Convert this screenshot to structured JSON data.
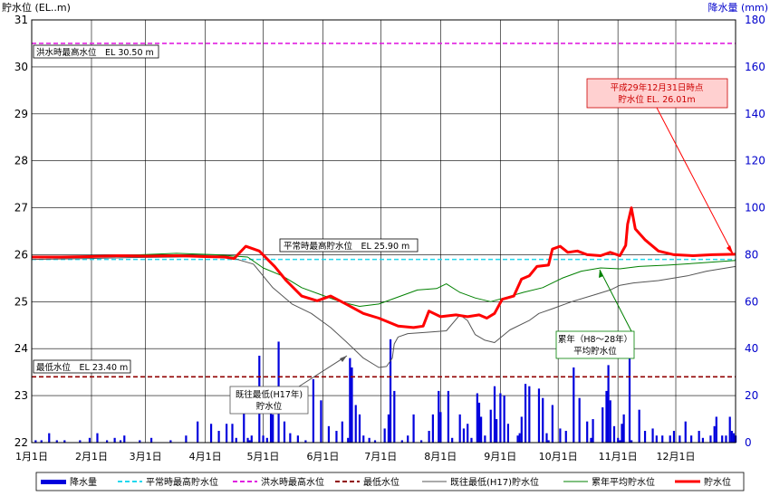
{
  "chart_data": {
    "type": "line",
    "left_axis": {
      "label": "貯水位 (EL..m)",
      "ylim": [
        22,
        31
      ],
      "ticks": [
        "22",
        "23",
        "24",
        "25",
        "26",
        "27",
        "28",
        "29",
        "30",
        "31"
      ]
    },
    "right_axis": {
      "label": "降水量 (mm)",
      "ylim": [
        0,
        180
      ],
      "ticks": [
        "0",
        "20",
        "40",
        "60",
        "80",
        "100",
        "120",
        "140",
        "160",
        "180"
      ]
    },
    "x_ticks": [
      "1月1日",
      "2月1日",
      "3月1日",
      "4月1日",
      "5月1日",
      "6月1日",
      "7月1日",
      "8月1日",
      "9月1日",
      "10月1日",
      "11月1日",
      "12月1日"
    ],
    "x_domain_days": 365,
    "reference_lines": [
      {
        "key": "flood",
        "label": "洪水時最高水位　EL 30.50 m",
        "value": 30.5,
        "color": "#e020e0"
      },
      {
        "key": "normal",
        "label": "平常時最高貯水位　EL 25.90 m",
        "value": 25.9,
        "color": "#20d8ee"
      },
      {
        "key": "min",
        "label": "最低水位　EL 23.40 m",
        "value": 23.4,
        "color": "#900000"
      }
    ],
    "annotations": {
      "current": {
        "line1": "平成29年12月31日時点",
        "line2": "貯水位 EL. 26.01m"
      },
      "historic": {
        "line1": "既往最低(H17年)",
        "line2": "貯水位"
      },
      "average": {
        "line1": "累年（H8～28年）",
        "line2": "平均貯水位"
      }
    },
    "series": [
      {
        "name": "貯水位",
        "color": "#ff0000",
        "axis": "left",
        "points": [
          [
            0,
            25.95
          ],
          [
            15,
            25.95
          ],
          [
            30,
            25.96
          ],
          [
            45,
            25.98
          ],
          [
            60,
            25.97
          ],
          [
            75,
            25.98
          ],
          [
            90,
            25.96
          ],
          [
            100,
            25.95
          ],
          [
            105,
            25.92
          ],
          [
            111,
            26.18
          ],
          [
            118,
            26.08
          ],
          [
            126,
            25.75
          ],
          [
            132,
            25.45
          ],
          [
            140,
            25.12
          ],
          [
            148,
            25.02
          ],
          [
            155,
            25.12
          ],
          [
            163,
            24.95
          ],
          [
            172,
            24.75
          ],
          [
            180,
            24.65
          ],
          [
            190,
            24.48
          ],
          [
            198,
            24.45
          ],
          [
            203,
            24.48
          ],
          [
            206,
            24.8
          ],
          [
            212,
            24.68
          ],
          [
            220,
            24.72
          ],
          [
            226,
            24.68
          ],
          [
            232,
            24.72
          ],
          [
            236,
            24.65
          ],
          [
            240,
            24.75
          ],
          [
            244,
            25.05
          ],
          [
            250,
            25.12
          ],
          [
            254,
            25.48
          ],
          [
            258,
            25.55
          ],
          [
            262,
            25.75
          ],
          [
            268,
            25.78
          ],
          [
            270,
            26.12
          ],
          [
            274,
            26.18
          ],
          [
            278,
            26.05
          ],
          [
            283,
            26.08
          ],
          [
            288,
            26.0
          ],
          [
            295,
            25.98
          ],
          [
            300,
            26.05
          ],
          [
            305,
            25.98
          ],
          [
            308,
            26.2
          ],
          [
            309,
            26.65
          ],
          [
            311,
            27.0
          ],
          [
            313,
            26.55
          ],
          [
            318,
            26.32
          ],
          [
            325,
            26.08
          ],
          [
            333,
            26.0
          ],
          [
            343,
            25.98
          ],
          [
            353,
            26.0
          ],
          [
            365,
            26.01
          ]
        ]
      },
      {
        "name": "既往最低(H17)貯水位",
        "color": "#555555",
        "axis": "left",
        "points": [
          [
            0,
            25.9
          ],
          [
            30,
            25.92
          ],
          [
            50,
            25.94
          ],
          [
            75,
            25.95
          ],
          [
            100,
            25.98
          ],
          [
            115,
            25.8
          ],
          [
            125,
            25.3
          ],
          [
            135,
            24.95
          ],
          [
            145,
            24.75
          ],
          [
            155,
            24.45
          ],
          [
            163,
            24.15
          ],
          [
            172,
            23.8
          ],
          [
            180,
            23.6
          ],
          [
            184,
            23.62
          ],
          [
            187,
            23.8
          ],
          [
            188,
            24.1
          ],
          [
            190,
            24.25
          ],
          [
            195,
            24.32
          ],
          [
            205,
            24.35
          ],
          [
            215,
            24.38
          ],
          [
            222,
            24.72
          ],
          [
            226,
            24.6
          ],
          [
            230,
            24.3
          ],
          [
            235,
            24.18
          ],
          [
            240,
            24.13
          ],
          [
            248,
            24.4
          ],
          [
            258,
            24.6
          ],
          [
            263,
            24.75
          ],
          [
            270,
            24.85
          ],
          [
            280,
            25.0
          ],
          [
            292,
            25.15
          ],
          [
            300,
            25.25
          ],
          [
            305,
            25.35
          ],
          [
            312,
            25.4
          ],
          [
            325,
            25.45
          ],
          [
            340,
            25.55
          ],
          [
            350,
            25.65
          ],
          [
            365,
            25.75
          ]
        ]
      },
      {
        "name": "累年平均貯水位",
        "color": "#008000",
        "axis": "left",
        "points": [
          [
            0,
            25.95
          ],
          [
            25,
            25.97
          ],
          [
            50,
            25.99
          ],
          [
            75,
            26.03
          ],
          [
            95,
            26.0
          ],
          [
            112,
            25.95
          ],
          [
            120,
            25.72
          ],
          [
            130,
            25.55
          ],
          [
            140,
            25.3
          ],
          [
            150,
            25.15
          ],
          [
            160,
            25.0
          ],
          [
            170,
            24.9
          ],
          [
            180,
            24.95
          ],
          [
            190,
            25.1
          ],
          [
            200,
            25.25
          ],
          [
            210,
            25.28
          ],
          [
            215,
            25.38
          ],
          [
            222,
            25.2
          ],
          [
            230,
            25.08
          ],
          [
            238,
            25.0
          ],
          [
            245,
            25.08
          ],
          [
            255,
            25.2
          ],
          [
            265,
            25.3
          ],
          [
            275,
            25.5
          ],
          [
            285,
            25.65
          ],
          [
            295,
            25.72
          ],
          [
            305,
            25.7
          ],
          [
            315,
            25.75
          ],
          [
            330,
            25.78
          ],
          [
            345,
            25.82
          ],
          [
            365,
            25.88
          ]
        ]
      }
    ],
    "precip_series": {
      "name": "降水量",
      "color": "#0000dd",
      "axis": "right",
      "bars": [
        [
          2,
          1
        ],
        [
          5,
          1
        ],
        [
          9,
          4
        ],
        [
          13,
          1
        ],
        [
          17,
          1
        ],
        [
          25,
          1
        ],
        [
          30,
          2
        ],
        [
          34,
          4
        ],
        [
          39,
          1
        ],
        [
          43,
          2
        ],
        [
          46,
          1
        ],
        [
          48,
          3
        ],
        [
          56,
          1
        ],
        [
          62,
          2
        ],
        [
          72,
          1
        ],
        [
          80,
          3
        ],
        [
          86,
          9
        ],
        [
          93,
          8
        ],
        [
          97,
          5
        ],
        [
          101,
          8
        ],
        [
          104,
          8
        ],
        [
          106,
          2
        ],
        [
          110,
          14
        ],
        [
          112,
          2
        ],
        [
          113,
          1
        ],
        [
          114,
          3
        ],
        [
          118,
          37
        ],
        [
          120,
          3
        ],
        [
          122,
          2
        ],
        [
          124,
          19
        ],
        [
          125,
          12
        ],
        [
          128,
          43
        ],
        [
          131,
          9
        ],
        [
          134,
          4
        ],
        [
          138,
          3
        ],
        [
          142,
          1
        ],
        [
          146,
          27
        ],
        [
          150,
          18
        ],
        [
          154,
          7
        ],
        [
          158,
          5
        ],
        [
          161,
          9
        ],
        [
          164,
          2
        ],
        [
          165,
          36
        ],
        [
          166,
          32
        ],
        [
          168,
          16
        ],
        [
          170,
          12
        ],
        [
          172,
          3
        ],
        [
          175,
          2
        ],
        [
          178,
          1
        ],
        [
          183,
          6
        ],
        [
          185,
          12
        ],
        [
          186,
          44
        ],
        [
          188,
          22
        ],
        [
          192,
          1
        ],
        [
          195,
          3
        ],
        [
          198,
          12
        ],
        [
          202,
          1
        ],
        [
          206,
          5
        ],
        [
          208,
          12
        ],
        [
          211,
          22
        ],
        [
          212,
          13
        ],
        [
          216,
          22
        ],
        [
          218,
          2
        ],
        [
          222,
          12
        ],
        [
          224,
          6
        ],
        [
          226,
          8
        ],
        [
          228,
          2
        ],
        [
          231,
          21
        ],
        [
          232,
          17
        ],
        [
          233,
          11
        ],
        [
          235,
          3
        ],
        [
          238,
          14
        ],
        [
          240,
          24
        ],
        [
          241,
          10
        ],
        [
          243,
          21
        ],
        [
          245,
          20
        ],
        [
          247,
          8
        ],
        [
          252,
          3
        ],
        [
          253,
          4
        ],
        [
          254,
          11
        ],
        [
          256,
          25
        ],
        [
          258,
          24
        ],
        [
          263,
          23
        ],
        [
          265,
          19
        ],
        [
          267,
          4
        ],
        [
          268,
          1
        ],
        [
          270,
          16
        ],
        [
          274,
          6
        ],
        [
          277,
          5
        ],
        [
          281,
          32
        ],
        [
          284,
          19
        ],
        [
          288,
          9
        ],
        [
          290,
          2
        ],
        [
          291,
          10
        ],
        [
          296,
          15
        ],
        [
          298,
          22
        ],
        [
          299,
          33
        ],
        [
          300,
          18
        ],
        [
          302,
          7
        ],
        [
          304,
          2
        ],
        [
          305,
          1
        ],
        [
          306,
          8
        ],
        [
          307,
          12
        ],
        [
          310,
          37
        ],
        [
          311,
          1
        ],
        [
          315,
          14
        ],
        [
          318,
          5
        ],
        [
          322,
          6
        ],
        [
          324,
          3
        ],
        [
          327,
          3
        ],
        [
          331,
          3
        ],
        [
          333,
          5
        ],
        [
          336,
          3
        ],
        [
          339,
          9
        ],
        [
          342,
          3
        ],
        [
          346,
          5
        ],
        [
          348,
          2
        ],
        [
          352,
          3
        ],
        [
          354,
          7
        ],
        [
          355,
          11
        ],
        [
          358,
          3
        ],
        [
          360,
          3
        ],
        [
          362,
          11
        ],
        [
          363,
          5
        ],
        [
          364,
          4
        ],
        [
          365,
          3
        ]
      ]
    },
    "legend": [
      "降水量",
      "平常時最高貯水位",
      "洪水時最高水位",
      "最低水位",
      "既往最低(H17)貯水位",
      "累年平均貯水位",
      "貯水位"
    ]
  }
}
